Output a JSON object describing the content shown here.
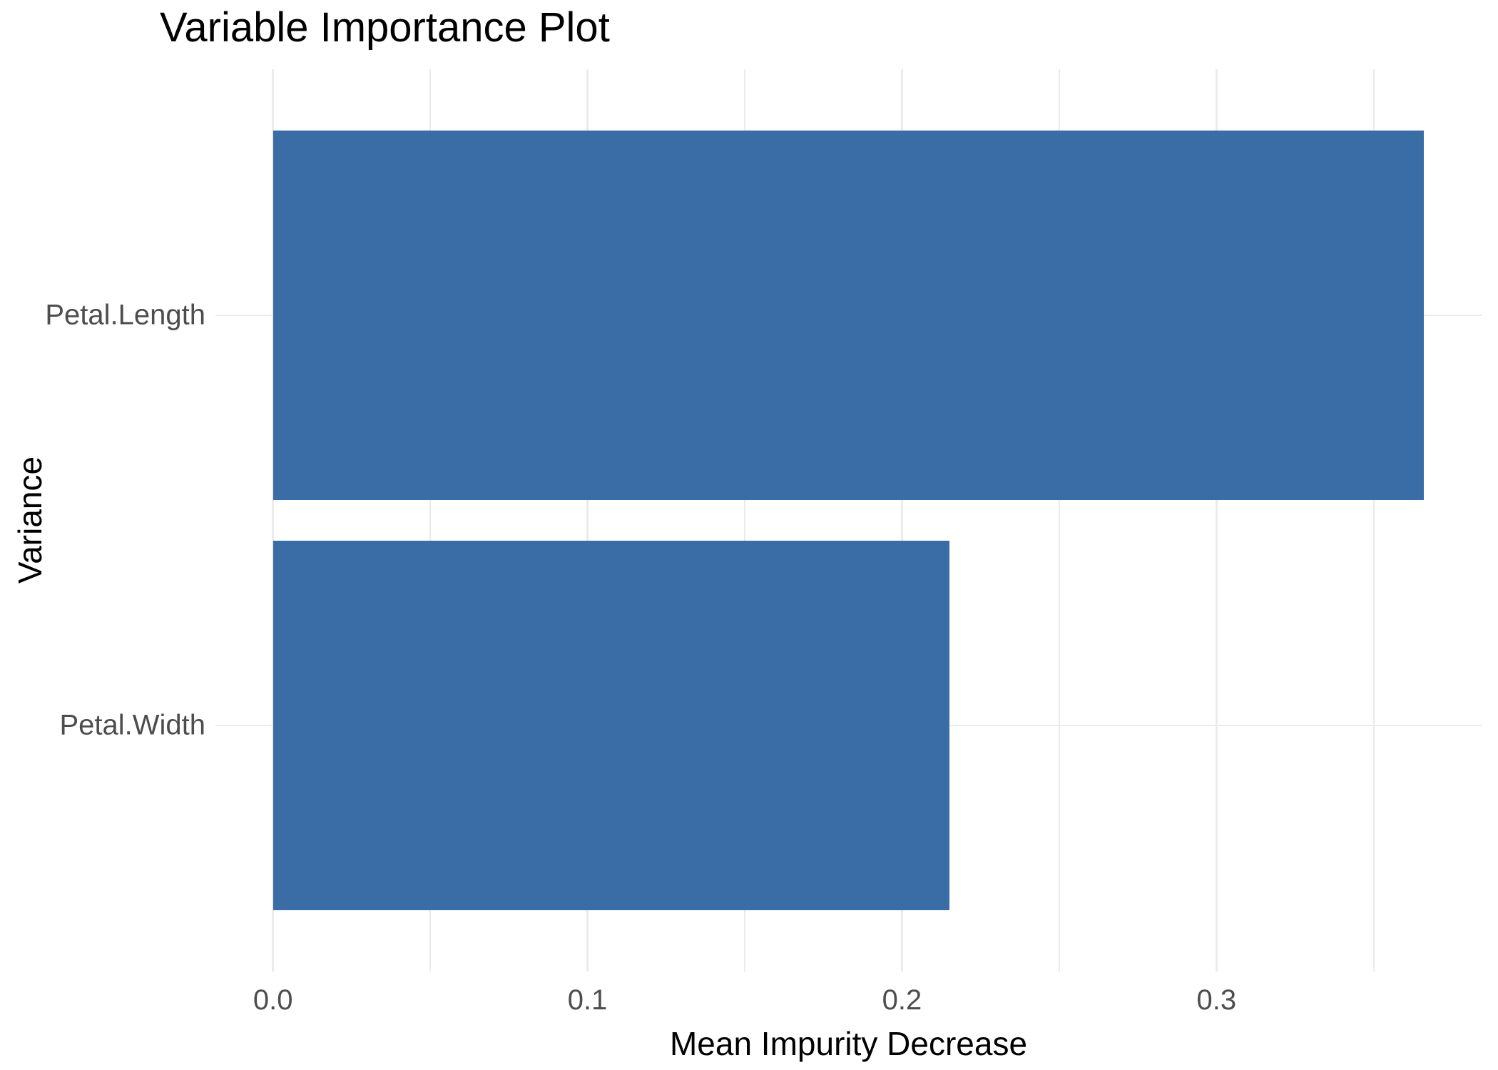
{
  "chart_data": {
    "type": "bar",
    "orientation": "horizontal",
    "title": "Variable Importance Plot",
    "xlabel": "Mean Impurity Decrease",
    "ylabel": "Variance",
    "categories": [
      "Petal.Length",
      "Petal.Width"
    ],
    "values": [
      0.366,
      0.215
    ],
    "x_major_ticks": [
      0.0,
      0.1,
      0.2,
      0.3
    ],
    "x_tick_labels": [
      "0.0",
      "0.1",
      "0.2",
      "0.3"
    ],
    "x_minor_ticks": [
      0.05,
      0.15,
      0.25,
      0.35
    ],
    "x_domain": [
      -0.0183,
      0.3843
    ],
    "bar_width_fraction": 0.9,
    "grid": true,
    "legend_position": "none",
    "colors": {
      "bar": "#3A6CA6",
      "grid": "#EBEBEB",
      "axis_text": "#4D4D4D",
      "title_text": "#000000"
    }
  }
}
